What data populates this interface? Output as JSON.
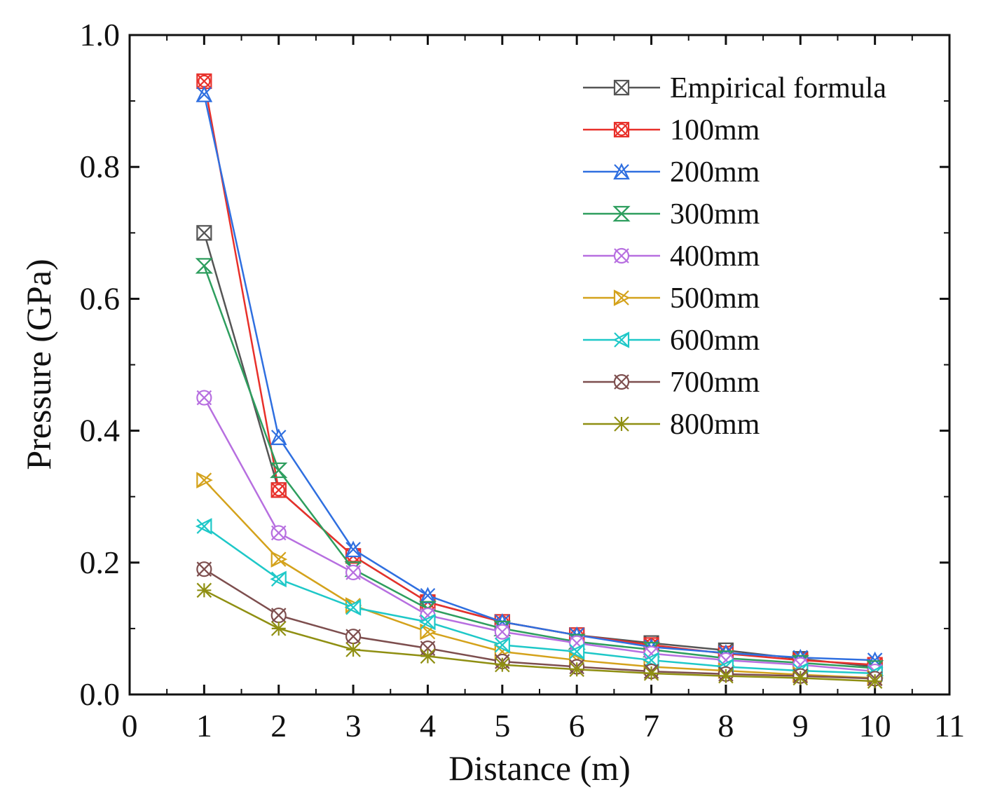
{
  "chart_data": {
    "type": "line",
    "xlabel": "Distance (m)",
    "ylabel": "Pressure (GPa)",
    "xlim": [
      0,
      11
    ],
    "ylim": [
      0.0,
      1.0
    ],
    "xticks": [
      "0",
      "1",
      "2",
      "3",
      "4",
      "5",
      "6",
      "7",
      "8",
      "9",
      "10",
      "11"
    ],
    "yticks": [
      "0.0",
      "0.2",
      "0.4",
      "0.6",
      "0.8",
      "1.0"
    ],
    "grid": false,
    "legend_position": "top-right",
    "x": [
      1,
      2,
      3,
      4,
      5,
      6,
      7,
      8,
      9,
      10
    ],
    "series": [
      {
        "name": "Empirical formula",
        "color": "#555555",
        "marker": "square-x",
        "values": [
          0.7,
          0.31,
          0.21,
          0.14,
          0.11,
          0.09,
          0.078,
          0.067,
          0.054,
          0.042
        ]
      },
      {
        "name": "100mm",
        "color": "#e8302a",
        "marker": "square-circle-x",
        "values": [
          0.93,
          0.31,
          0.21,
          0.14,
          0.11,
          0.09,
          0.075,
          0.062,
          0.052,
          0.045
        ]
      },
      {
        "name": "200mm",
        "color": "#2f6fe0",
        "marker": "triangle-x",
        "values": [
          0.91,
          0.39,
          0.22,
          0.15,
          0.11,
          0.09,
          0.072,
          0.063,
          0.056,
          0.052
        ]
      },
      {
        "name": "300mm",
        "color": "#2e9e5e",
        "marker": "hourglass-x",
        "values": [
          0.65,
          0.34,
          0.19,
          0.13,
          0.1,
          0.08,
          0.068,
          0.055,
          0.048,
          0.04
        ]
      },
      {
        "name": "400mm",
        "color": "#b76fe0",
        "marker": "circle-x",
        "values": [
          0.45,
          0.245,
          0.185,
          0.12,
          0.095,
          0.078,
          0.062,
          0.052,
          0.045,
          0.035
        ]
      },
      {
        "name": "500mm",
        "color": "#d4a21b",
        "marker": "bowtie-left",
        "values": [
          0.325,
          0.205,
          0.135,
          0.095,
          0.065,
          0.052,
          0.042,
          0.036,
          0.03,
          0.025
        ]
      },
      {
        "name": "600mm",
        "color": "#1ec8c8",
        "marker": "bowtie-right",
        "values": [
          0.255,
          0.175,
          0.132,
          0.11,
          0.075,
          0.065,
          0.052,
          0.042,
          0.036,
          0.032
        ]
      },
      {
        "name": "700mm",
        "color": "#7d4e4e",
        "marker": "circle-x",
        "values": [
          0.19,
          0.12,
          0.088,
          0.07,
          0.05,
          0.042,
          0.035,
          0.031,
          0.028,
          0.024
        ]
      },
      {
        "name": "800mm",
        "color": "#8f8f12",
        "marker": "star",
        "values": [
          0.158,
          0.1,
          0.068,
          0.058,
          0.045,
          0.038,
          0.032,
          0.028,
          0.025,
          0.02
        ]
      }
    ]
  }
}
